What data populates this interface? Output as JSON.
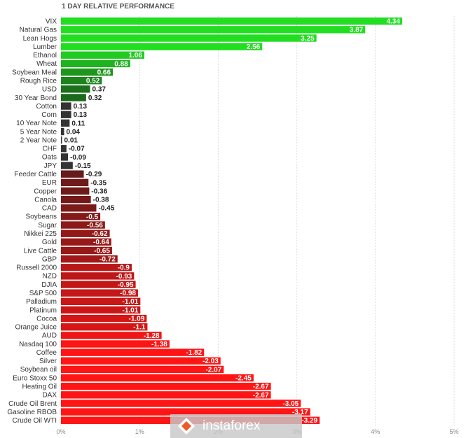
{
  "chart_data": {
    "type": "bar",
    "orientation": "horizontal",
    "title": "1 DAY RELATIVE PERFORMANCE",
    "xlim": [
      0,
      5
    ],
    "tick_values": [
      0,
      1,
      2,
      3,
      4,
      5
    ],
    "tick_labels": [
      "0%",
      "1%",
      "2%",
      "3%",
      "4%",
      "5%"
    ],
    "grid": true,
    "categories": [
      "VIX",
      "Natural Gas",
      "Lean Hogs",
      "Lumber",
      "Ethanol",
      "Wheat",
      "Soybean Meal",
      "Rough Rice",
      "USD",
      "30 Year Bond",
      "Cotton",
      "Corn",
      "10 Year Note",
      "5 Year Note",
      "2 Year Note",
      "CHF",
      "Oats",
      "JPY",
      "Feeder Cattle",
      "EUR",
      "Copper",
      "Canola",
      "CAD",
      "Soybeans",
      "Sugar",
      "Nikkei 225",
      "Gold",
      "Live Cattle",
      "GBP",
      "Russell 2000",
      "NZD",
      "DJIA",
      "S&P 500",
      "Palladium",
      "Platinum",
      "Cocoa",
      "Orange Juice",
      "AUD",
      "Nasdaq 100",
      "Coffee",
      "Silver",
      "Soybean oil",
      "Euro Stoxx 50",
      "Heating Oil",
      "DAX",
      "Crude Oil Brent",
      "Gasoline RBOB",
      "Crude Oil WTI"
    ],
    "values": [
      4.34,
      3.87,
      3.25,
      2.56,
      1.06,
      0.88,
      0.66,
      0.52,
      0.37,
      0.32,
      0.13,
      0.13,
      0.11,
      0.04,
      0.01,
      -0.07,
      -0.09,
      -0.15,
      -0.29,
      -0.35,
      -0.36,
      -0.38,
      -0.45,
      -0.5,
      -0.56,
      -0.62,
      -0.64,
      -0.65,
      -0.72,
      -0.9,
      -0.93,
      -0.95,
      -0.98,
      -1.01,
      -1.01,
      -1.09,
      -1.1,
      -1.28,
      -1.38,
      -1.82,
      -2.03,
      -2.07,
      -2.45,
      -2.67,
      -2.67,
      -3.05,
      -3.17,
      -3.29
    ],
    "value_labels": [
      "4.34",
      "3.87",
      "3.25",
      "2.56",
      "1.06",
      "0.88",
      "0.66",
      "0.52",
      "0.37",
      "0.32",
      "0.13",
      "0.13",
      "0.11",
      "0.04",
      "0.01",
      "-0.07",
      "-0.09",
      "-0.15",
      "-0.29",
      "-0.35",
      "-0.36",
      "-0.38",
      "-0.45",
      "-0.5",
      "-0.56",
      "-0.62",
      "-0.64",
      "-0.65",
      "-0.72",
      "-0.9",
      "-0.93",
      "-0.95",
      "-0.98",
      "-1.01",
      "-1.01",
      "-1.09",
      "-1.1",
      "-1.28",
      "-1.38",
      "-1.82",
      "-2.03",
      "-2.07",
      "-2.45",
      "-2.67",
      "-2.67",
      "-3.05",
      "-3.17",
      "-3.29"
    ],
    "colors": {
      "positive_strong": "#22dd22",
      "positive_dark": "#1a5a1a",
      "neutral": "#333333",
      "negative_dark": "#5a1a1a",
      "negative_strong": "#ff1515",
      "grid": "#dddddd"
    }
  },
  "watermark": {
    "text": "instaforex",
    "logo_icon": "instaforex-logo-icon"
  }
}
